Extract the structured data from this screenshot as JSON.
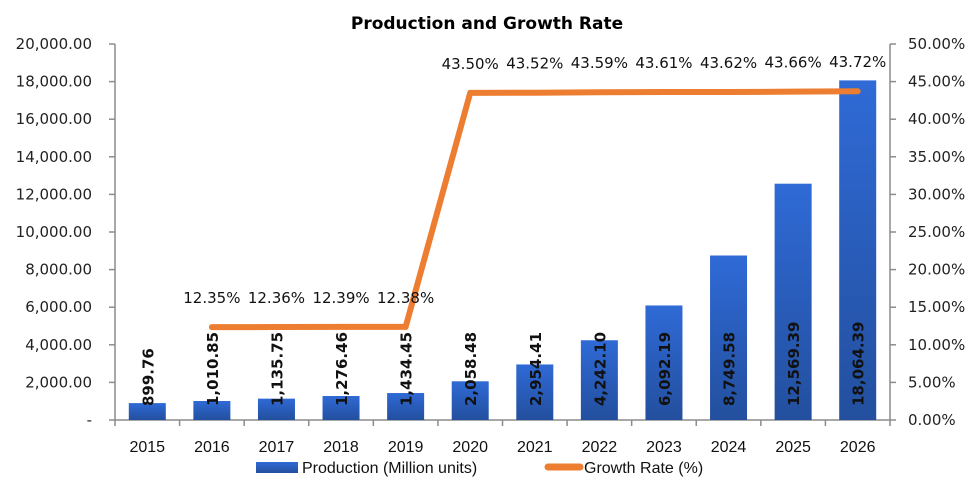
{
  "chart_data": {
    "type": "bar",
    "title": "Production and Growth Rate",
    "categories": [
      "2015",
      "2016",
      "2017",
      "2018",
      "2019",
      "2020",
      "2021",
      "2022",
      "2023",
      "2024",
      "2025",
      "2026"
    ],
    "series": [
      {
        "name": "Production (Million units)",
        "type": "bar",
        "axis": "left",
        "color": "#2E62C9",
        "values": [
          899.76,
          1010.85,
          1135.75,
          1276.46,
          1434.45,
          2058.48,
          2954.41,
          4242.1,
          6092.19,
          8749.58,
          12569.39,
          18064.39
        ],
        "labels": [
          "899.76",
          "1,010.85",
          "1,135.75",
          "1,276.46",
          "1,434.45",
          "2,058.48",
          "2,954.41",
          "4,242.10",
          "6,092.19",
          "8,749.58",
          "12,569.39",
          "18,064.39"
        ]
      },
      {
        "name": "Growth Rate (%)",
        "type": "line",
        "axis": "right",
        "color": "#ED7D31",
        "values": [
          null,
          12.35,
          12.36,
          12.39,
          12.38,
          43.5,
          43.52,
          43.59,
          43.61,
          43.62,
          43.66,
          43.72
        ],
        "labels": [
          "",
          "12.35%",
          "12.36%",
          "12.39%",
          "12.38%",
          "43.50%",
          "43.52%",
          "43.59%",
          "43.61%",
          "43.62%",
          "43.66%",
          "43.72%"
        ]
      }
    ],
    "y_left": {
      "range": [
        0,
        20000
      ],
      "ticks": [
        "-",
        "2,000.00",
        "4,000.00",
        "6,000.00",
        "8,000.00",
        "10,000.00",
        "12,000.00",
        "14,000.00",
        "16,000.00",
        "18,000.00",
        "20,000.00"
      ]
    },
    "y_right": {
      "range": [
        0,
        50
      ],
      "ticks": [
        "0.00%",
        "5.00%",
        "10.00%",
        "15.00%",
        "20.00%",
        "25.00%",
        "30.00%",
        "35.00%",
        "40.00%",
        "45.00%",
        "50.00%"
      ]
    },
    "xlabel": "",
    "ylabel": "",
    "grid": false,
    "legend": {
      "position": "bottom",
      "entries": [
        "Production (Million units)",
        "Growth Rate (%)"
      ]
    }
  }
}
